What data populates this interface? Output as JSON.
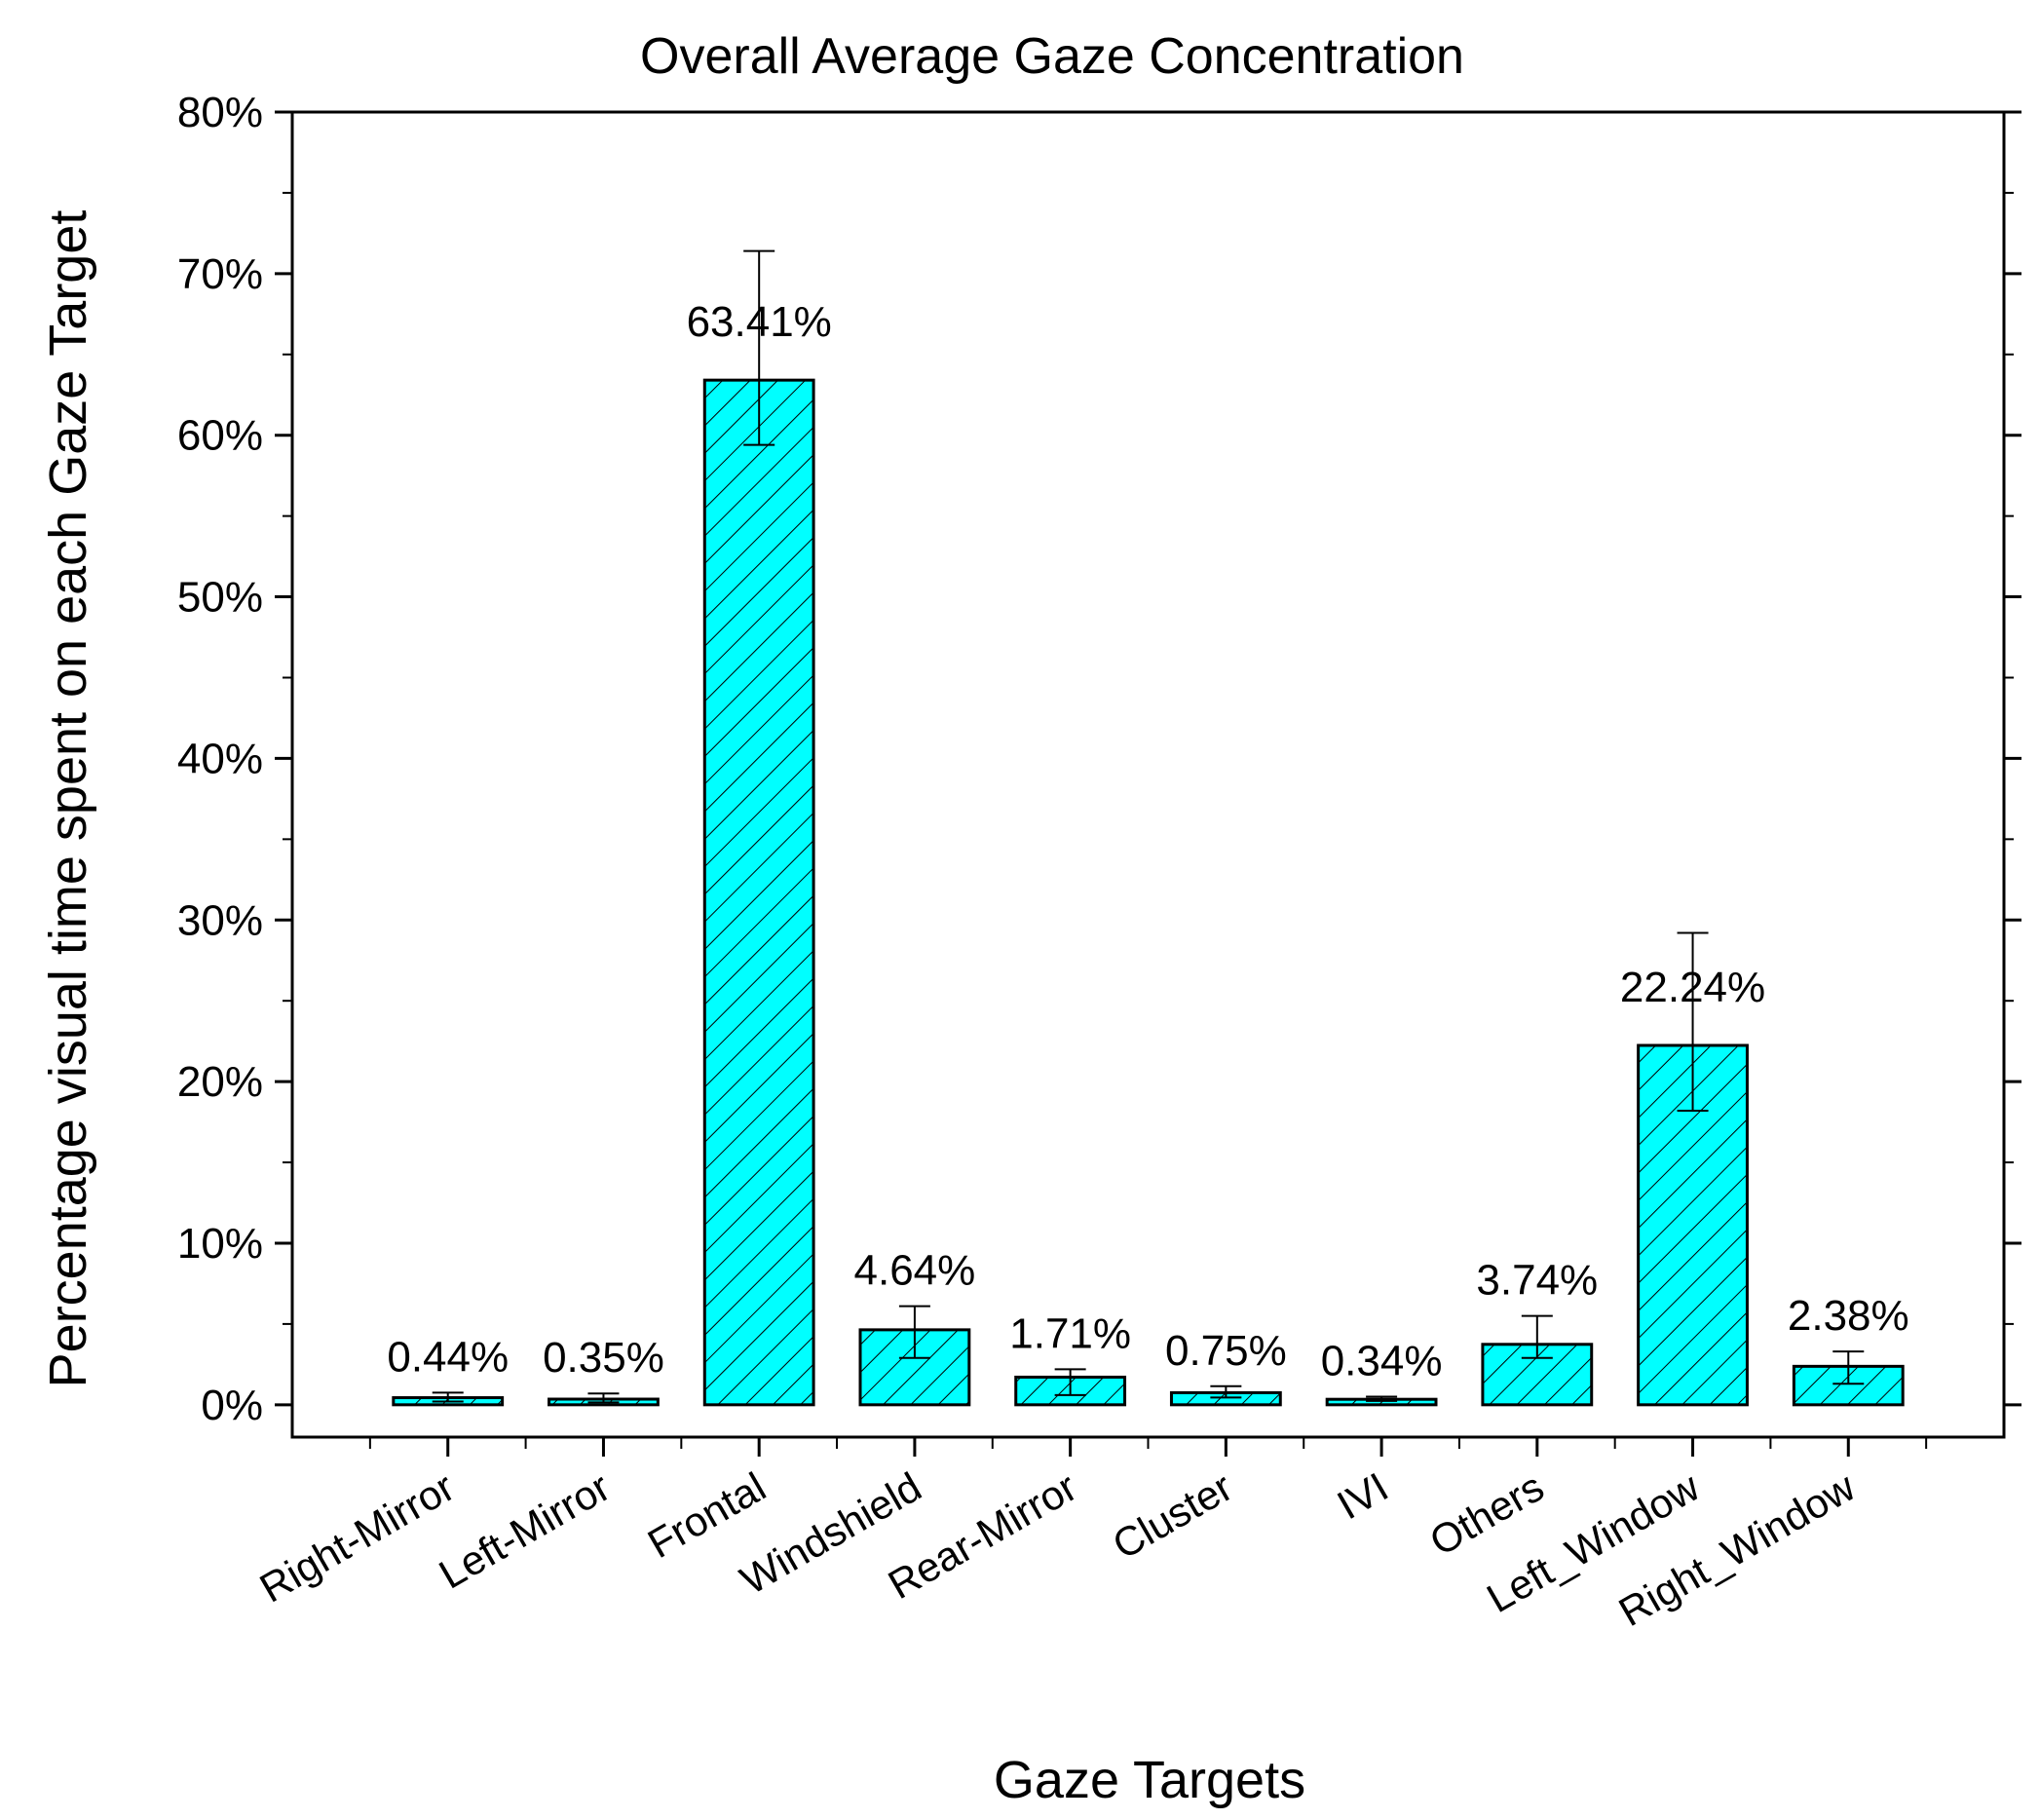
{
  "colors": {
    "bar_fill": "#00FFFF",
    "stroke": "#000000",
    "background": "#FFFFFF"
  },
  "chart_data": {
    "type": "bar",
    "title": "Overall Average Gaze Concentration",
    "xlabel": "Gaze Targets",
    "ylabel": "Percentage visual time spent on each Gaze Target",
    "ylim": [
      -2,
      80
    ],
    "yticks": [
      0,
      10,
      20,
      30,
      40,
      50,
      60,
      70,
      80
    ],
    "ytick_labels": [
      "0%",
      "10%",
      "20%",
      "30%",
      "40%",
      "50%",
      "60%",
      "70%",
      "80%"
    ],
    "categories": [
      "Right-Mirror",
      "Left-Mirror",
      "Frontal",
      "Windshield",
      "Rear-Mirror",
      "Cluster",
      "IVI",
      "Others",
      "Left_Window",
      "Right_Window"
    ],
    "values": [
      0.44,
      0.35,
      63.41,
      4.64,
      1.71,
      0.75,
      0.34,
      3.74,
      22.24,
      2.38
    ],
    "value_labels": [
      "0.44%",
      "0.35%",
      "63.41%",
      "4.64%",
      "1.71%",
      "0.75%",
      "0.34%",
      "3.74%",
      "22.24%",
      "2.38%"
    ],
    "error_low": [
      0.2,
      0.15,
      59.4,
      2.9,
      0.6,
      0.45,
      0.24,
      2.9,
      18.2,
      1.3
    ],
    "error_high": [
      0.75,
      0.7,
      71.4,
      6.1,
      2.2,
      1.15,
      0.5,
      5.5,
      29.2,
      3.3
    ],
    "pattern": "hatched",
    "grid": false
  }
}
